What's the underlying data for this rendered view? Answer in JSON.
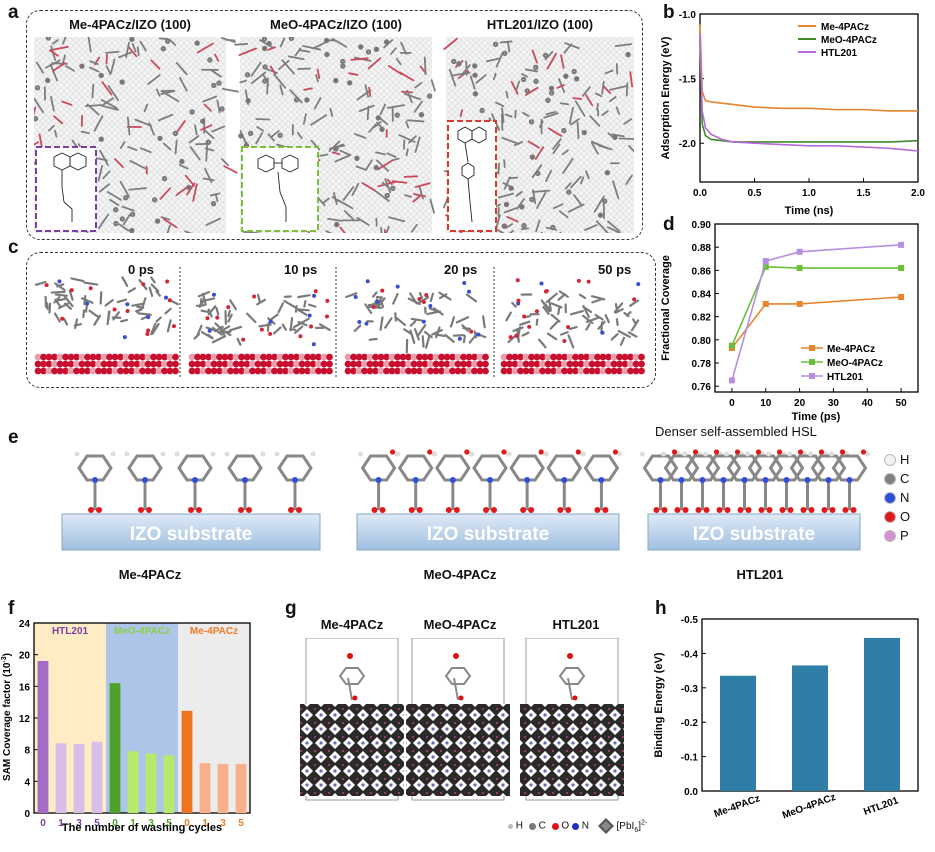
{
  "panel_labels": {
    "a": "a",
    "b": "b",
    "c": "c",
    "d": "d",
    "e": "e",
    "f": "f",
    "g": "g",
    "h": "h"
  },
  "panel_a": {
    "titles": [
      "Me-4PACz/IZO (100)",
      "MeO-4PACz/IZO (100)",
      "HTL201/IZO (100)"
    ],
    "inset_colors": [
      "#7b3fa3",
      "#7cbf3a",
      "#d63b2e"
    ]
  },
  "panel_c": {
    "times": [
      "0 ps",
      "10 ps",
      "20 ps",
      "50 ps"
    ]
  },
  "panel_e": {
    "substrate_label": "IZO substrate",
    "names": [
      "Me-4PACz",
      "MeO-4PACz",
      "HTL201"
    ],
    "annotation": "Denser self-assembled HSL",
    "legend": [
      {
        "label": "H",
        "color": "#f2f2f2"
      },
      {
        "label": "C",
        "color": "#808080"
      },
      {
        "label": "N",
        "color": "#2f4fd8"
      },
      {
        "label": "O",
        "color": "#e01a1a"
      },
      {
        "label": "P",
        "color": "#d58fd5"
      }
    ]
  },
  "panel_g": {
    "titles": [
      "Me-4PACz",
      "MeO-4PACz",
      "HTL201"
    ],
    "legend": {
      "h": "H",
      "c": "C",
      "o": "O",
      "n": "N",
      "pbi": "[PbI",
      "pbi_sub": "6",
      "pbi_sup": "]",
      "charge": "2-"
    }
  },
  "chart_data": [
    {
      "id": "b",
      "type": "line",
      "xlabel": "Time (ns)",
      "ylabel": "Adsorption Energy (eV)",
      "xlim": [
        0,
        2.0
      ],
      "ylim": [
        -2.3,
        -1.0
      ],
      "xticks": [
        "0.0",
        "0.5",
        "1.0",
        "1.5",
        "2.0"
      ],
      "yticks": [
        "-1.0",
        "-1.5",
        "-2.0"
      ],
      "series": [
        {
          "name": "Me-4PACz",
          "color": "#e8842e",
          "x": [
            0,
            0.02,
            0.05,
            0.1,
            0.2,
            0.3,
            0.5,
            0.75,
            1.0,
            1.25,
            1.5,
            1.75,
            2.0
          ],
          "y": [
            -1.08,
            -1.6,
            -1.67,
            -1.68,
            -1.69,
            -1.7,
            -1.72,
            -1.73,
            -1.73,
            -1.74,
            -1.74,
            -1.75,
            -1.75
          ]
        },
        {
          "name": "MeO-4PACz",
          "color": "#3f8a2a",
          "x": [
            0,
            0.02,
            0.05,
            0.1,
            0.2,
            0.3,
            0.5,
            0.75,
            1.0,
            1.25,
            1.5,
            1.75,
            2.0
          ],
          "y": [
            -1.2,
            -1.85,
            -1.94,
            -1.97,
            -1.98,
            -1.99,
            -1.99,
            -1.99,
            -1.99,
            -1.99,
            -1.99,
            -1.99,
            -1.98
          ]
        },
        {
          "name": "HTL201",
          "color": "#b46ad8",
          "x": [
            0,
            0.02,
            0.05,
            0.1,
            0.2,
            0.3,
            0.5,
            0.75,
            1.0,
            1.25,
            1.5,
            1.75,
            2.0
          ],
          "y": [
            -1.15,
            -1.75,
            -1.88,
            -1.93,
            -1.97,
            -1.99,
            -2.0,
            -2.01,
            -2.02,
            -2.02,
            -2.03,
            -2.04,
            -2.06
          ]
        }
      ]
    },
    {
      "id": "d",
      "type": "line",
      "xlabel": "Time (ps)",
      "ylabel": "Fractional Coverage",
      "xlim": [
        -5,
        55
      ],
      "ylim": [
        0.755,
        0.9
      ],
      "xticks": [
        "0",
        "10",
        "20",
        "30",
        "40",
        "50"
      ],
      "yticks": [
        "0.76",
        "0.78",
        "0.80",
        "0.82",
        "0.84",
        "0.86",
        "0.88",
        "0.90"
      ],
      "series": [
        {
          "name": "Me-4PACz",
          "color": "#e8842e",
          "marker": "square",
          "x": [
            0,
            10,
            20,
            50
          ],
          "y": [
            0.793,
            0.831,
            0.831,
            0.837
          ]
        },
        {
          "name": "MeO-4PACz",
          "color": "#6abf3a",
          "marker": "square",
          "x": [
            0,
            10,
            20,
            50
          ],
          "y": [
            0.795,
            0.863,
            0.862,
            0.862
          ]
        },
        {
          "name": "HTL201",
          "color": "#b68fe0",
          "marker": "square",
          "x": [
            0,
            10,
            20,
            50
          ],
          "y": [
            0.765,
            0.868,
            0.876,
            0.882
          ]
        }
      ]
    },
    {
      "id": "f",
      "type": "bar",
      "xlabel": "The number of washing cycles",
      "ylabel": "SAM Coverage factor (10",
      "ylabel_sup": "-3",
      "ylabel_end": ")",
      "ylim": [
        0,
        24
      ],
      "yticks": [
        "0",
        "4",
        "8",
        "12",
        "16",
        "20",
        "24"
      ],
      "groups": [
        {
          "name": "HTL201",
          "name_color": "#7b3fa3",
          "bg": "#fdecc4",
          "categories": [
            "0",
            "1",
            "3",
            "5"
          ],
          "values": [
            19.2,
            8.8,
            8.7,
            9.0
          ],
          "colors": [
            "#a46cc8",
            "#d8bde6",
            "#d8bde6",
            "#d8bde6"
          ],
          "tick_color": "#7b3fa3"
        },
        {
          "name": "MeO-4PACz",
          "name_color": "#8ccf4a",
          "bg": "#aec5ea",
          "categories": [
            "0",
            "1",
            "3",
            "5"
          ],
          "values": [
            16.4,
            7.8,
            7.5,
            7.3
          ],
          "colors": [
            "#4ea22a",
            "#b6ea6a",
            "#b6ea6a",
            "#b6ea6a"
          ],
          "tick_color": "#4ea22a"
        },
        {
          "name": "Me-4PACz",
          "name_color": "#f07a23",
          "bg": "#ececec",
          "categories": [
            "0",
            "1",
            "3",
            "5"
          ],
          "values": [
            12.9,
            6.3,
            6.2,
            6.2
          ],
          "colors": [
            "#f0731f",
            "#f7b089",
            "#f7b089",
            "#f7b089"
          ],
          "tick_color": "#f07a23"
        }
      ]
    },
    {
      "id": "h",
      "type": "bar",
      "ylabel": "Binding Energy (eV)",
      "ylim": [
        0,
        -0.5
      ],
      "yticks": [
        "0.0",
        "-0.1",
        "-0.2",
        "-0.3",
        "-0.4",
        "-0.5"
      ],
      "categories": [
        "Me-4PACz",
        "MeO-4PACz",
        "HTL201"
      ],
      "values": [
        -0.335,
        -0.365,
        -0.445
      ],
      "color": "#2f7ea6"
    }
  ]
}
